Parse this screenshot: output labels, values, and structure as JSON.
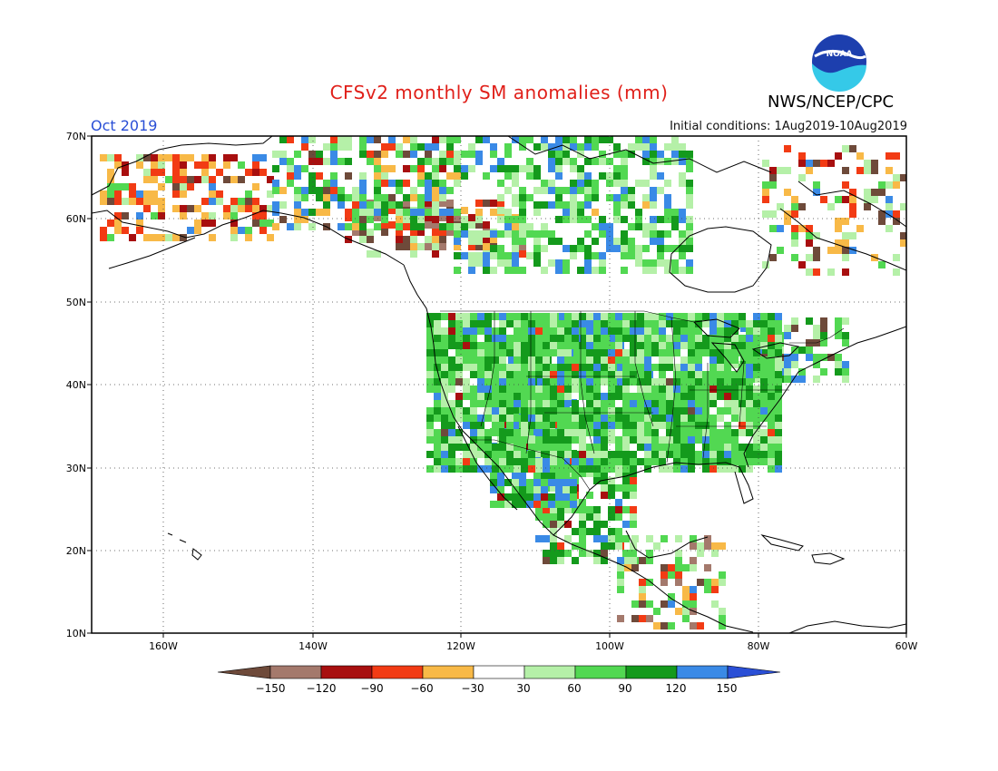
{
  "header": {
    "title": "CFSv2 monthly SM anomalies (mm)",
    "agency": "NWS/NCEP/CPC",
    "month": "Oct 2019",
    "initial_conditions": "Initial conditions: 1Aug2019-10Aug2019"
  },
  "axes": {
    "lat_labels": [
      "70N",
      "60N",
      "50N",
      "40N",
      "30N",
      "20N",
      "10N"
    ],
    "lon_labels": [
      "160W",
      "140W",
      "120W",
      "100W",
      "80W",
      "60W"
    ]
  },
  "colorbar": {
    "labels": [
      "−150",
      "−120",
      "−90",
      "−60",
      "−30",
      "30",
      "60",
      "90",
      "120",
      "150"
    ],
    "colors": [
      "#6e4a3a",
      "#a4796c",
      "#a80f0f",
      "#f23b14",
      "#f8b947",
      "#ffffff",
      "#b5f0a8",
      "#52d852",
      "#149a1c",
      "#3a8ae6",
      "#2a4fd6"
    ]
  },
  "colors": {
    "title": "#e0201a",
    "month": "#2a4fd6",
    "wet_strong": "#3a8ae6",
    "wet": "#149a1c",
    "dry": "#f23b14"
  },
  "logo_text": "NOAA"
}
